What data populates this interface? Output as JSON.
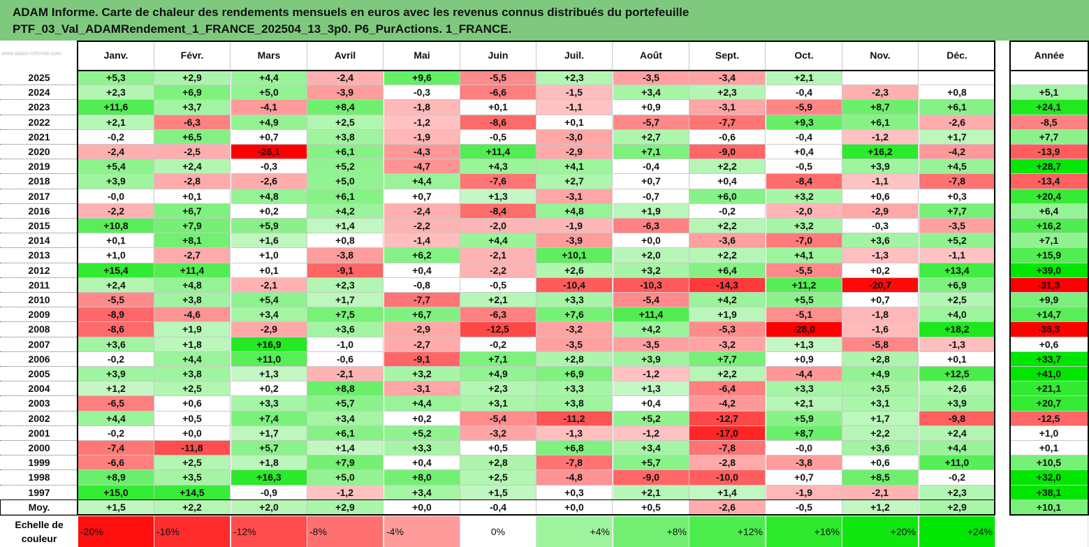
{
  "title": {
    "line1": "ADAM Informe. Carte de chaleur des rendements mensuels en euros avec les revenus connus distribués du portefeuille",
    "line2": "PTF_03_Val_ADAMRendement_1_FRANCE_202504_13_3p0. P6_PurActions. 1_FRANCE."
  },
  "watermark": "www.adam-informe.com",
  "colors": {
    "negative_max": "#ff0000",
    "positive_max": "#00e600",
    "neutral": "#ffffff",
    "title_band": "#7ec97e"
  },
  "chart_data": {
    "type": "heatmap",
    "columns": [
      "Janv.",
      "Févr.",
      "Mars",
      "Avril",
      "Mai",
      "Juin",
      "Juil.",
      "Août",
      "Sept.",
      "Oct.",
      "Nov.",
      "Déc."
    ],
    "annual_header": "Année",
    "rows": [
      {
        "year": "2025",
        "values": [
          "+5,3",
          "+2,9",
          "+4,4",
          "-2,4",
          "+9,6",
          "-5,5",
          "+2,3",
          "-3,5",
          "-3,4",
          "+2,1",
          "",
          ""
        ],
        "annual": ""
      },
      {
        "year": "2024",
        "values": [
          "+2,3",
          "+6,9",
          "+5,0",
          "-3,9",
          "-0,3",
          "-6,6",
          "-1,5",
          "+3,4",
          "+2,3",
          "-0,4",
          "-2,3",
          "+0,8"
        ],
        "annual": "+5,1"
      },
      {
        "year": "2023",
        "values": [
          "+11,6",
          "+3,7",
          "-4,1",
          "+8,4",
          "-1,8",
          "+0,1",
          "-1,1",
          "+0,9",
          "-3,1",
          "-5,9",
          "+8,7",
          "+6,1"
        ],
        "annual": "+24,1"
      },
      {
        "year": "2022",
        "values": [
          "+2,1",
          "-6,3",
          "+4,9",
          "+2,5",
          "-1,2",
          "-8,6",
          "+0,1",
          "-5,7",
          "-7,7",
          "+9,3",
          "+6,1",
          "-2,6"
        ],
        "annual": "-8,5"
      },
      {
        "year": "2021",
        "values": [
          "-0,2",
          "+6,5",
          "+0,7",
          "+3,8",
          "-1,9",
          "-0,5",
          "-3,0",
          "+2,7",
          "-0,6",
          "-0,4",
          "-1,2",
          "+1,7"
        ],
        "annual": "+7,7"
      },
      {
        "year": "2020",
        "values": [
          "-2,4",
          "-2,5",
          "-26,1",
          "+6,1",
          "-4,3",
          "+11,4",
          "-2,9",
          "+7,1",
          "-9,0",
          "+0,4",
          "+16,2",
          "-4,2"
        ],
        "annual": "-13,9"
      },
      {
        "year": "2019",
        "values": [
          "+5,4",
          "+2,4",
          "-0,3",
          "+5,2",
          "-4,7",
          "+4,3",
          "+4,1",
          "-0,4",
          "+2,2",
          "-0,5",
          "+3,9",
          "+4,5"
        ],
        "annual": "+28,7"
      },
      {
        "year": "2018",
        "values": [
          "+3,9",
          "-2,8",
          "-2,6",
          "+5,0",
          "+4,4",
          "-7,6",
          "+2,7",
          "+0,7",
          "+0,4",
          "-8,4",
          "-1,1",
          "-7,8"
        ],
        "annual": "-13,4"
      },
      {
        "year": "2017",
        "values": [
          "-0,0",
          "+0,1",
          "+4,8",
          "+6,1",
          "+0,7",
          "+1,3",
          "-3,1",
          "-0,7",
          "+6,0",
          "+3,2",
          "+0,6",
          "+0,3"
        ],
        "annual": "+20,4"
      },
      {
        "year": "2016",
        "values": [
          "-2,2",
          "+6,7",
          "+0,2",
          "+4,2",
          "-2,4",
          "-8,4",
          "+4,8",
          "+1,9",
          "-0,2",
          "-2,0",
          "-2,9",
          "+7,7"
        ],
        "annual": "+6,4"
      },
      {
        "year": "2015",
        "values": [
          "+10,8",
          "+7,9",
          "+5,9",
          "+1,4",
          "-2,2",
          "-2,0",
          "-1,9",
          "-6,3",
          "+2,2",
          "+3,2",
          "-0,3",
          "-3,5"
        ],
        "annual": "+16,2"
      },
      {
        "year": "2014",
        "values": [
          "+0,1",
          "+8,1",
          "+1,6",
          "+0,8",
          "-1,4",
          "+4,4",
          "-3,9",
          "+0,0",
          "-3,6",
          "-7,0",
          "+3,6",
          "+5,2"
        ],
        "annual": "+7,1"
      },
      {
        "year": "2013",
        "values": [
          "+1,0",
          "-2,7",
          "+1,0",
          "-3,8",
          "+6,2",
          "-2,1",
          "+10,1",
          "+2,0",
          "+2,2",
          "+4,1",
          "-1,3",
          "-1,1"
        ],
        "annual": "+15,9"
      },
      {
        "year": "2012",
        "values": [
          "+15,4",
          "+11,4",
          "+0,1",
          "-9,1",
          "+0,4",
          "-2,2",
          "+2,6",
          "+3,2",
          "+6,4",
          "-5,5",
          "+0,2",
          "+13,4"
        ],
        "annual": "+39,0"
      },
      {
        "year": "2011",
        "values": [
          "+2,4",
          "+4,8",
          "-2,1",
          "+2,3",
          "-0,8",
          "-0,5",
          "-10,4",
          "-10,3",
          "-14,3",
          "+11,2",
          "-20,7",
          "+6,9"
        ],
        "annual": "-31,3"
      },
      {
        "year": "2010",
        "values": [
          "-5,5",
          "+3,8",
          "+5,4",
          "+1,7",
          "-7,7",
          "+2,1",
          "+3,3",
          "-5,4",
          "+4,2",
          "+5,5",
          "+0,7",
          "+2,5"
        ],
        "annual": "+9,9"
      },
      {
        "year": "2009",
        "values": [
          "-8,9",
          "-4,6",
          "+3,4",
          "+7,5",
          "+6,7",
          "-6,3",
          "+7,6",
          "+11,4",
          "+1,9",
          "-5,1",
          "-1,8",
          "+4,0"
        ],
        "annual": "+14,7"
      },
      {
        "year": "2008",
        "values": [
          "-8,6",
          "+1,9",
          "-2,9",
          "+3,6",
          "-2,9",
          "-12,5",
          "-3,2",
          "+4,2",
          "-5,3",
          "-28,0",
          "-1,6",
          "+18,2"
        ],
        "annual": "-36,3"
      },
      {
        "year": "2007",
        "values": [
          "+3,6",
          "+1,8",
          "+16,9",
          "-1,0",
          "-2,7",
          "-0,2",
          "-3,5",
          "-3,5",
          "-3,2",
          "+1,3",
          "-5,8",
          "-1,3"
        ],
        "annual": "+0,6"
      },
      {
        "year": "2006",
        "values": [
          "-0,2",
          "+4,4",
          "+11,0",
          "-0,6",
          "-9,1",
          "+7,1",
          "+2,8",
          "+3,9",
          "+7,7",
          "+0,9",
          "+2,8",
          "+0,1"
        ],
        "annual": "+33,7"
      },
      {
        "year": "2005",
        "values": [
          "+3,9",
          "+3,8",
          "+1,3",
          "-2,1",
          "+3,2",
          "+4,9",
          "+6,9",
          "-1,2",
          "+2,2",
          "-4,4",
          "+4,9",
          "+12,5"
        ],
        "annual": "+41,0"
      },
      {
        "year": "2004",
        "values": [
          "+1,2",
          "+2,5",
          "+0,2",
          "+8,8",
          "-3,1",
          "+2,3",
          "+3,3",
          "+1,3",
          "-6,4",
          "+3,3",
          "+3,5",
          "+2,6"
        ],
        "annual": "+21,1"
      },
      {
        "year": "2003",
        "values": [
          "-6,5",
          "+0,6",
          "+3,3",
          "+5,7",
          "+4,4",
          "+3,1",
          "+3,8",
          "+0,4",
          "-4,2",
          "+2,1",
          "+3,1",
          "+3,9"
        ],
        "annual": "+20,7"
      },
      {
        "year": "2002",
        "values": [
          "+4,4",
          "+0,5",
          "+7,4",
          "+3,4",
          "+0,2",
          "-5,4",
          "-11,2",
          "+5,2",
          "-12,7",
          "+5,9",
          "+1,7",
          "-9,8"
        ],
        "annual": "-12,5"
      },
      {
        "year": "2001",
        "values": [
          "-0,2",
          "+0,0",
          "+1,7",
          "+6,1",
          "+5,2",
          "-3,2",
          "-1,3",
          "-1,2",
          "-17,0",
          "+8,7",
          "+2,2",
          "+2,4"
        ],
        "annual": "+1,0"
      },
      {
        "year": "2000",
        "values": [
          "-7,4",
          "-11,8",
          "+5,7",
          "+1,4",
          "+3,3",
          "+0,5",
          "+6,8",
          "+3,4",
          "-7,8",
          "-0,0",
          "+3,6",
          "+4,4"
        ],
        "annual": "+0,1"
      },
      {
        "year": "1999",
        "values": [
          "-6,6",
          "+2,5",
          "+1,8",
          "+7,9",
          "+0,4",
          "+2,8",
          "-7,8",
          "+5,7",
          "-2,8",
          "-3,8",
          "+0,6",
          "+11,0"
        ],
        "annual": "+10,5"
      },
      {
        "year": "1998",
        "values": [
          "+8,9",
          "+3,5",
          "+16,3",
          "+5,0",
          "+8,0",
          "+2,5",
          "-4,8",
          "-9,0",
          "-10,0",
          "+0,7",
          "+8,5",
          "-0,2"
        ],
        "annual": "+32,0"
      },
      {
        "year": "1997",
        "values": [
          "+15,0",
          "+14,5",
          "-0,9",
          "-1,2",
          "+3,4",
          "+1,5",
          "+0,3",
          "+2,1",
          "+1,4",
          "-1,9",
          "-2,1",
          "+2,3"
        ],
        "annual": "+38,1"
      },
      {
        "year": "Moy.",
        "values": [
          "+1,5",
          "+2,2",
          "+2,0",
          "+2,9",
          "+0,0",
          "-0,4",
          "+0,0",
          "+0,5",
          "-2,6",
          "-0,5",
          "+1,2",
          "+2,9"
        ],
        "annual": "+10,1"
      }
    ],
    "scale_label": "Echelle de couleur",
    "scale": [
      {
        "label": "-20%",
        "value": -20
      },
      {
        "label": "-16%",
        "value": -16
      },
      {
        "label": "-12%",
        "value": -12
      },
      {
        "label": "-8%",
        "value": -8
      },
      {
        "label": "-4%",
        "value": -4
      },
      {
        "label": "0%",
        "value": 0
      },
      {
        "label": "+4%",
        "value": 4
      },
      {
        "label": "+8%",
        "value": 8
      },
      {
        "label": "+12%",
        "value": 12
      },
      {
        "label": "+16%",
        "value": 16
      },
      {
        "label": "+20%",
        "value": 20
      },
      {
        "label": "+24%",
        "value": 24
      }
    ],
    "scale_extra": ""
  }
}
